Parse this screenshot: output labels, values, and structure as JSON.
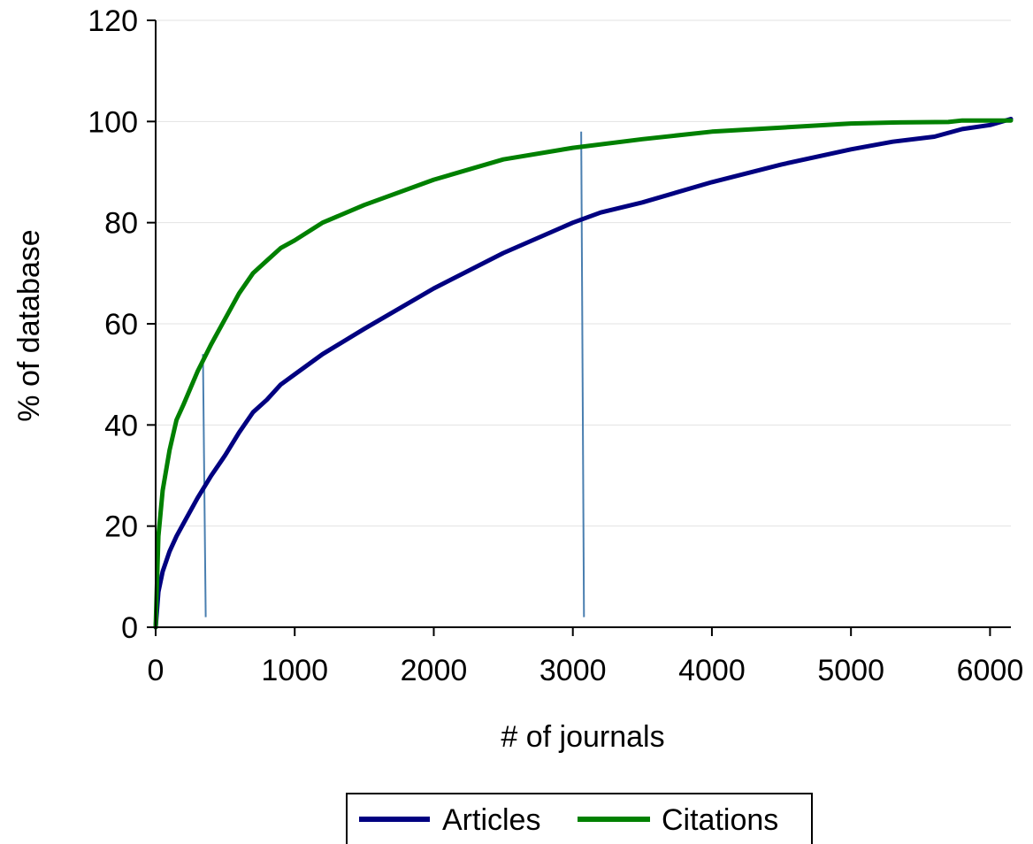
{
  "chart_data": {
    "type": "line",
    "title": "",
    "xlabel": "# of journals",
    "ylabel": "% of database",
    "xlim": [
      0,
      6150
    ],
    "ylim": [
      0,
      120
    ],
    "xticks": [
      0,
      1000,
      2000,
      3000,
      4000,
      5000,
      6000
    ],
    "yticks": [
      0,
      20,
      40,
      60,
      80,
      100,
      120
    ],
    "grid": "horizontal",
    "legend": "bottom",
    "series": [
      {
        "name": "Articles",
        "color": "#000080",
        "x": [
          0,
          20,
          50,
          100,
          150,
          200,
          300,
          400,
          500,
          600,
          700,
          800,
          900,
          1000,
          1200,
          1500,
          2000,
          2500,
          3000,
          3200,
          3500,
          4000,
          4500,
          5000,
          5300,
          5600,
          5800,
          6000,
          6150
        ],
        "y": [
          0,
          7,
          11,
          15,
          18,
          20.5,
          25.5,
          30,
          34,
          38.5,
          42.5,
          45,
          48,
          50,
          54,
          59,
          67,
          74,
          80,
          82,
          84,
          88,
          91.5,
          94.5,
          96,
          97,
          98.5,
          99.3,
          100.5
        ]
      },
      {
        "name": "Citations",
        "color": "#008000",
        "x": [
          0,
          20,
          50,
          100,
          150,
          200,
          300,
          400,
          500,
          600,
          700,
          800,
          900,
          1000,
          1200,
          1500,
          2000,
          2500,
          3000,
          3500,
          4000,
          4500,
          5000,
          5300,
          5700,
          5800,
          6000,
          6150
        ],
        "y": [
          0,
          18,
          27,
          35,
          41,
          44,
          50.5,
          56,
          61,
          66,
          70,
          72.5,
          75,
          76.5,
          80,
          83.5,
          88.5,
          92.5,
          94.8,
          96.5,
          98,
          98.8,
          99.6,
          99.8,
          99.9,
          100.2,
          100.2,
          100.2
        ]
      }
    ],
    "reference_lines": [
      {
        "x_top": 340,
        "y_top": 54,
        "x_bottom": 360,
        "y_bottom": 2
      },
      {
        "x_top": 3060,
        "y_top": 98,
        "x_bottom": 3080,
        "y_bottom": 2
      }
    ]
  }
}
